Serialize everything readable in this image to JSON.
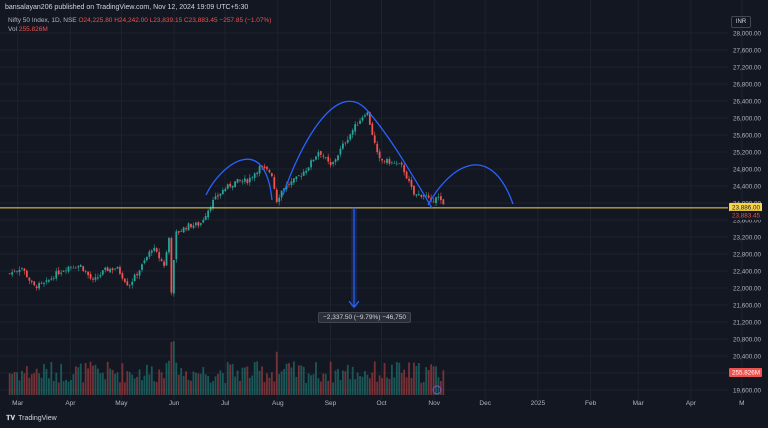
{
  "header": {
    "published": "bansalayan206 published on TradingView.com, Nov 12, 2024 19:09 UTC+5:30",
    "symbol": "Nifty 50 Index, 1D, NSE",
    "ohlc": "O24,225.80 H24,242.00 L23,839.15 C23,883.45 −257.85 (−1.07%)",
    "volume_label": "Vol",
    "volume_value": "255.826M",
    "currency": "INR"
  },
  "price_badges": {
    "last": "23,883.45",
    "level": "23,886.00",
    "volume": "255.826M"
  },
  "measure_label": "−2,337.50 (−9.79%) −46,750",
  "footer": {
    "brand": "TradingView"
  },
  "colors": {
    "background": "#131722",
    "up": "#26a69a",
    "down": "#ef5350",
    "pattern": "#2962ff",
    "level_line": "#f7d44c",
    "measure": "#2962ff"
  },
  "chart_data": {
    "type": "candlestick",
    "title": "Nifty 50 Index, 1D, NSE",
    "y_ticks": [
      "28,000.00",
      "27,600.00",
      "27,200.00",
      "26,800.00",
      "26,400.00",
      "26,000.00",
      "25,600.00",
      "25,200.00",
      "24,800.00",
      "24,400.00",
      "24,000.00",
      "23,600.00",
      "23,200.00",
      "22,800.00",
      "22,400.00",
      "22,000.00",
      "21,600.00",
      "21,200.00",
      "20,800.00",
      "20,400.00",
      "20,000.00",
      "19,600.00"
    ],
    "ylim": [
      19600,
      28000
    ],
    "x_ticks": [
      "Mar",
      "Apr",
      "May",
      "Jun",
      "Jul",
      "Aug",
      "Sep",
      "Oct",
      "Nov",
      "Dec",
      "2025",
      "Feb",
      "Mar",
      "Apr",
      "M"
    ],
    "horizontal_level": 23886,
    "last_close": 23883.45,
    "measure": {
      "from": 23886,
      "to": 21548.5,
      "change": "−2,337.50 (−9.79%) −46,750"
    },
    "price_path": [
      [
        "2024-03-01",
        22339
      ],
      [
        "2024-03-08",
        22490
      ],
      [
        "2024-03-15",
        22030
      ],
      [
        "2024-03-22",
        22100
      ],
      [
        "2024-03-28",
        22327
      ],
      [
        "2024-04-05",
        22513
      ],
      [
        "2024-04-12",
        22519
      ],
      [
        "2024-04-19",
        22147
      ],
      [
        "2024-04-26",
        22420
      ],
      [
        "2024-05-03",
        22475
      ],
      [
        "2024-05-10",
        22055
      ],
      [
        "2024-05-17",
        22466
      ],
      [
        "2024-05-24",
        22957
      ],
      [
        "2024-05-31",
        22530
      ],
      [
        "2024-06-03",
        23264
      ],
      [
        "2024-06-04",
        21885
      ],
      [
        "2024-06-07",
        23290
      ],
      [
        "2024-06-14",
        23465
      ],
      [
        "2024-06-21",
        23500
      ],
      [
        "2024-06-28",
        24010
      ],
      [
        "2024-07-05",
        24323
      ],
      [
        "2024-07-12",
        24502
      ],
      [
        "2024-07-19",
        24530
      ],
      [
        "2024-07-26",
        24834
      ],
      [
        "2024-08-02",
        24717
      ],
      [
        "2024-08-05",
        24055
      ],
      [
        "2024-08-09",
        24367
      ],
      [
        "2024-08-16",
        24541
      ],
      [
        "2024-08-23",
        24823
      ],
      [
        "2024-08-30",
        25235
      ],
      [
        "2024-09-06",
        24852
      ],
      [
        "2024-09-13",
        25356
      ],
      [
        "2024-09-20",
        25790
      ],
      [
        "2024-09-27",
        26178
      ],
      [
        "2024-10-04",
        25014
      ],
      [
        "2024-10-11",
        24964
      ],
      [
        "2024-10-18",
        24854
      ],
      [
        "2024-10-25",
        24180
      ],
      [
        "2024-10-31",
        24205
      ],
      [
        "2024-11-04",
        23995
      ],
      [
        "2024-11-07",
        24199
      ],
      [
        "2024-11-12",
        23883
      ]
    ]
  }
}
